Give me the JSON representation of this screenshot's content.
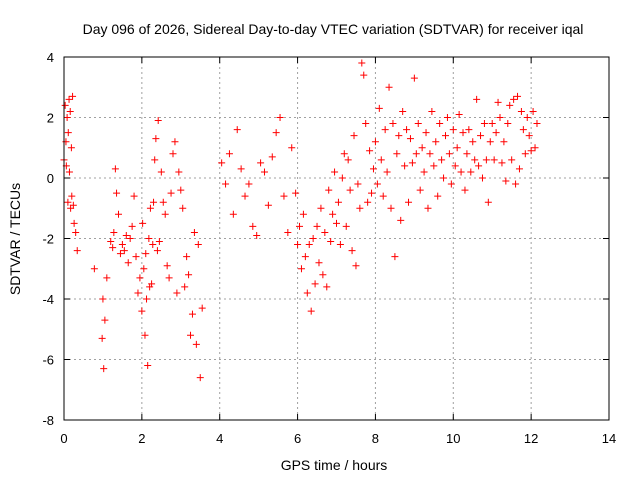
{
  "chart_data": {
    "type": "scatter",
    "title": "Day 096 of 2026, Sidereal Day-to-day VTEC variation (SDTVAR) for receiver iqal",
    "xlabel": "GPS time / hours",
    "ylabel": "SDTVAR / TECUs",
    "xlim": [
      0,
      14
    ],
    "ylim": [
      -8,
      4
    ],
    "xticks": [
      0,
      2,
      4,
      6,
      8,
      10,
      12,
      14
    ],
    "yticks": [
      -8,
      -6,
      -4,
      -2,
      0,
      2,
      4
    ],
    "grid": true,
    "marker": "plus",
    "colors": {
      "series": "#ff0000",
      "grid": "#a0a0a0",
      "axis": "#000000"
    },
    "series": [
      {
        "name": "SDTVAR",
        "points": [
          [
            0.0,
            0.6
          ],
          [
            0.03,
            2.4
          ],
          [
            0.05,
            1.2
          ],
          [
            0.06,
            0.4
          ],
          [
            0.08,
            2.0
          ],
          [
            0.1,
            -0.8
          ],
          [
            0.11,
            1.5
          ],
          [
            0.13,
            2.6
          ],
          [
            0.14,
            0.2
          ],
          [
            0.16,
            2.2
          ],
          [
            0.17,
            -1.0
          ],
          [
            0.19,
            1.0
          ],
          [
            0.2,
            -0.6
          ],
          [
            0.22,
            2.7
          ],
          [
            0.24,
            -0.9
          ],
          [
            0.26,
            -1.5
          ],
          [
            0.3,
            -1.8
          ],
          [
            0.34,
            -2.4
          ],
          [
            0.78,
            -3.0
          ],
          [
            0.98,
            -5.3
          ],
          [
            1.0,
            -4.0
          ],
          [
            1.02,
            -6.3
          ],
          [
            1.05,
            -4.7
          ],
          [
            1.1,
            -3.3
          ],
          [
            1.2,
            -2.1
          ],
          [
            1.25,
            -2.3
          ],
          [
            1.28,
            -1.8
          ],
          [
            1.32,
            0.3
          ],
          [
            1.35,
            -0.5
          ],
          [
            1.4,
            -1.2
          ],
          [
            1.45,
            -2.5
          ],
          [
            1.5,
            -2.2
          ],
          [
            1.55,
            -2.4
          ],
          [
            1.6,
            -1.9
          ],
          [
            1.65,
            -2.8
          ],
          [
            1.7,
            -2.0
          ],
          [
            1.75,
            -1.6
          ],
          [
            1.8,
            -0.6
          ],
          [
            1.85,
            -2.6
          ],
          [
            1.9,
            -3.8
          ],
          [
            1.95,
            -3.3
          ],
          [
            2.0,
            -4.4
          ],
          [
            2.02,
            -1.5
          ],
          [
            2.05,
            -3.0
          ],
          [
            2.08,
            -5.2
          ],
          [
            2.1,
            -2.5
          ],
          [
            2.12,
            -4.0
          ],
          [
            2.15,
            -6.2
          ],
          [
            2.18,
            -2.0
          ],
          [
            2.2,
            -3.6
          ],
          [
            2.22,
            -1.0
          ],
          [
            2.25,
            -3.5
          ],
          [
            2.28,
            -2.2
          ],
          [
            2.3,
            -0.8
          ],
          [
            2.33,
            0.6
          ],
          [
            2.36,
            1.3
          ],
          [
            2.4,
            -2.4
          ],
          [
            2.42,
            1.9
          ],
          [
            2.45,
            -2.1
          ],
          [
            2.5,
            0.2
          ],
          [
            2.55,
            -0.8
          ],
          [
            2.6,
            -1.2
          ],
          [
            2.65,
            -2.9
          ],
          [
            2.7,
            -3.3
          ],
          [
            2.75,
            -0.5
          ],
          [
            2.8,
            0.8
          ],
          [
            2.85,
            1.2
          ],
          [
            2.9,
            -3.8
          ],
          [
            2.95,
            0.2
          ],
          [
            3.0,
            -0.4
          ],
          [
            3.05,
            -1.0
          ],
          [
            3.1,
            -3.6
          ],
          [
            3.15,
            -2.6
          ],
          [
            3.2,
            -3.2
          ],
          [
            3.25,
            -5.2
          ],
          [
            3.3,
            -4.5
          ],
          [
            3.35,
            -1.8
          ],
          [
            3.4,
            -5.5
          ],
          [
            3.45,
            -2.2
          ],
          [
            3.5,
            -6.6
          ],
          [
            3.55,
            -4.3
          ],
          [
            4.05,
            0.5
          ],
          [
            4.15,
            -0.2
          ],
          [
            4.25,
            0.8
          ],
          [
            4.35,
            -1.2
          ],
          [
            4.45,
            1.6
          ],
          [
            4.55,
            0.3
          ],
          [
            4.65,
            -0.6
          ],
          [
            4.75,
            -0.2
          ],
          [
            4.85,
            -1.6
          ],
          [
            4.95,
            -1.9
          ],
          [
            5.05,
            0.5
          ],
          [
            5.15,
            0.2
          ],
          [
            5.25,
            -0.9
          ],
          [
            5.35,
            0.7
          ],
          [
            5.45,
            1.5
          ],
          [
            5.55,
            2.0
          ],
          [
            5.65,
            -0.6
          ],
          [
            5.75,
            -1.8
          ],
          [
            5.85,
            1.0
          ],
          [
            5.95,
            -0.5
          ],
          [
            6.0,
            -2.2
          ],
          [
            6.05,
            -1.6
          ],
          [
            6.1,
            -3.0
          ],
          [
            6.15,
            -1.2
          ],
          [
            6.2,
            -2.6
          ],
          [
            6.25,
            -3.8
          ],
          [
            6.3,
            -2.2
          ],
          [
            6.35,
            -4.4
          ],
          [
            6.4,
            -2.0
          ],
          [
            6.45,
            -3.5
          ],
          [
            6.5,
            -1.6
          ],
          [
            6.55,
            -2.8
          ],
          [
            6.6,
            -1.0
          ],
          [
            6.65,
            -3.2
          ],
          [
            6.7,
            -1.8
          ],
          [
            6.75,
            -3.6
          ],
          [
            6.8,
            -0.4
          ],
          [
            6.85,
            -2.1
          ],
          [
            6.9,
            -1.2
          ],
          [
            6.95,
            0.2
          ],
          [
            7.0,
            -1.5
          ],
          [
            7.05,
            -0.8
          ],
          [
            7.1,
            -2.2
          ],
          [
            7.15,
            0.0
          ],
          [
            7.2,
            0.8
          ],
          [
            7.25,
            -1.6
          ],
          [
            7.3,
            0.6
          ],
          [
            7.35,
            -0.4
          ],
          [
            7.4,
            -2.4
          ],
          [
            7.45,
            1.4
          ],
          [
            7.5,
            -2.9
          ],
          [
            7.55,
            -0.2
          ],
          [
            7.6,
            -1.0
          ],
          [
            7.65,
            3.8
          ],
          [
            7.7,
            3.4
          ],
          [
            7.75,
            1.8
          ],
          [
            7.8,
            -0.8
          ],
          [
            7.85,
            0.9
          ],
          [
            7.9,
            -0.5
          ],
          [
            7.95,
            0.3
          ],
          [
            8.0,
            1.2
          ],
          [
            8.05,
            -0.2
          ],
          [
            8.1,
            2.3
          ],
          [
            8.15,
            0.6
          ],
          [
            8.2,
            -0.6
          ],
          [
            8.25,
            1.6
          ],
          [
            8.3,
            0.2
          ],
          [
            8.35,
            3.0
          ],
          [
            8.4,
            -1.0
          ],
          [
            8.45,
            1.8
          ],
          [
            8.5,
            -2.6
          ],
          [
            8.55,
            0.8
          ],
          [
            8.6,
            1.4
          ],
          [
            8.65,
            -1.4
          ],
          [
            8.7,
            2.2
          ],
          [
            8.75,
            0.4
          ],
          [
            8.8,
            1.6
          ],
          [
            8.85,
            -0.8
          ],
          [
            8.9,
            1.3
          ],
          [
            8.95,
            0.5
          ],
          [
            9.0,
            3.3
          ],
          [
            9.05,
            0.8
          ],
          [
            9.1,
            1.8
          ],
          [
            9.15,
            -0.4
          ],
          [
            9.2,
            1.0
          ],
          [
            9.25,
            0.2
          ],
          [
            9.3,
            1.5
          ],
          [
            9.35,
            -1.0
          ],
          [
            9.4,
            0.8
          ],
          [
            9.45,
            2.2
          ],
          [
            9.5,
            0.4
          ],
          [
            9.55,
            1.2
          ],
          [
            9.6,
            -0.6
          ],
          [
            9.65,
            1.8
          ],
          [
            9.7,
            0.6
          ],
          [
            9.75,
            0.0
          ],
          [
            9.8,
            1.4
          ],
          [
            9.85,
            2.0
          ],
          [
            9.9,
            0.8
          ],
          [
            9.95,
            -0.2
          ],
          [
            10.0,
            1.6
          ],
          [
            10.05,
            0.4
          ],
          [
            10.1,
            1.0
          ],
          [
            10.15,
            2.1
          ],
          [
            10.2,
            0.2
          ],
          [
            10.25,
            1.5
          ],
          [
            10.3,
            -0.4
          ],
          [
            10.35,
            0.8
          ],
          [
            10.4,
            1.6
          ],
          [
            10.45,
            0.2
          ],
          [
            10.5,
            1.2
          ],
          [
            10.55,
            0.6
          ],
          [
            10.6,
            2.6
          ],
          [
            10.65,
            0.4
          ],
          [
            10.7,
            1.4
          ],
          [
            10.75,
            0.0
          ],
          [
            10.8,
            1.8
          ],
          [
            10.85,
            0.6
          ],
          [
            10.9,
            -0.8
          ],
          [
            10.95,
            1.2
          ],
          [
            11.0,
            1.8
          ],
          [
            11.05,
            0.6
          ],
          [
            11.1,
            1.5
          ],
          [
            11.15,
            2.5
          ],
          [
            11.2,
            2.0
          ],
          [
            11.25,
            0.5
          ],
          [
            11.3,
            1.2
          ],
          [
            11.35,
            -0.1
          ],
          [
            11.4,
            1.8
          ],
          [
            11.45,
            2.4
          ],
          [
            11.5,
            0.6
          ],
          [
            11.55,
            2.6
          ],
          [
            11.6,
            -0.2
          ],
          [
            11.65,
            2.7
          ],
          [
            11.7,
            0.3
          ],
          [
            11.75,
            2.2
          ],
          [
            11.8,
            1.6
          ],
          [
            11.85,
            0.8
          ],
          [
            11.9,
            2.0
          ],
          [
            11.95,
            1.4
          ],
          [
            12.0,
            0.9
          ],
          [
            12.05,
            2.2
          ],
          [
            12.1,
            1.0
          ],
          [
            12.15,
            1.8
          ]
        ]
      }
    ]
  }
}
